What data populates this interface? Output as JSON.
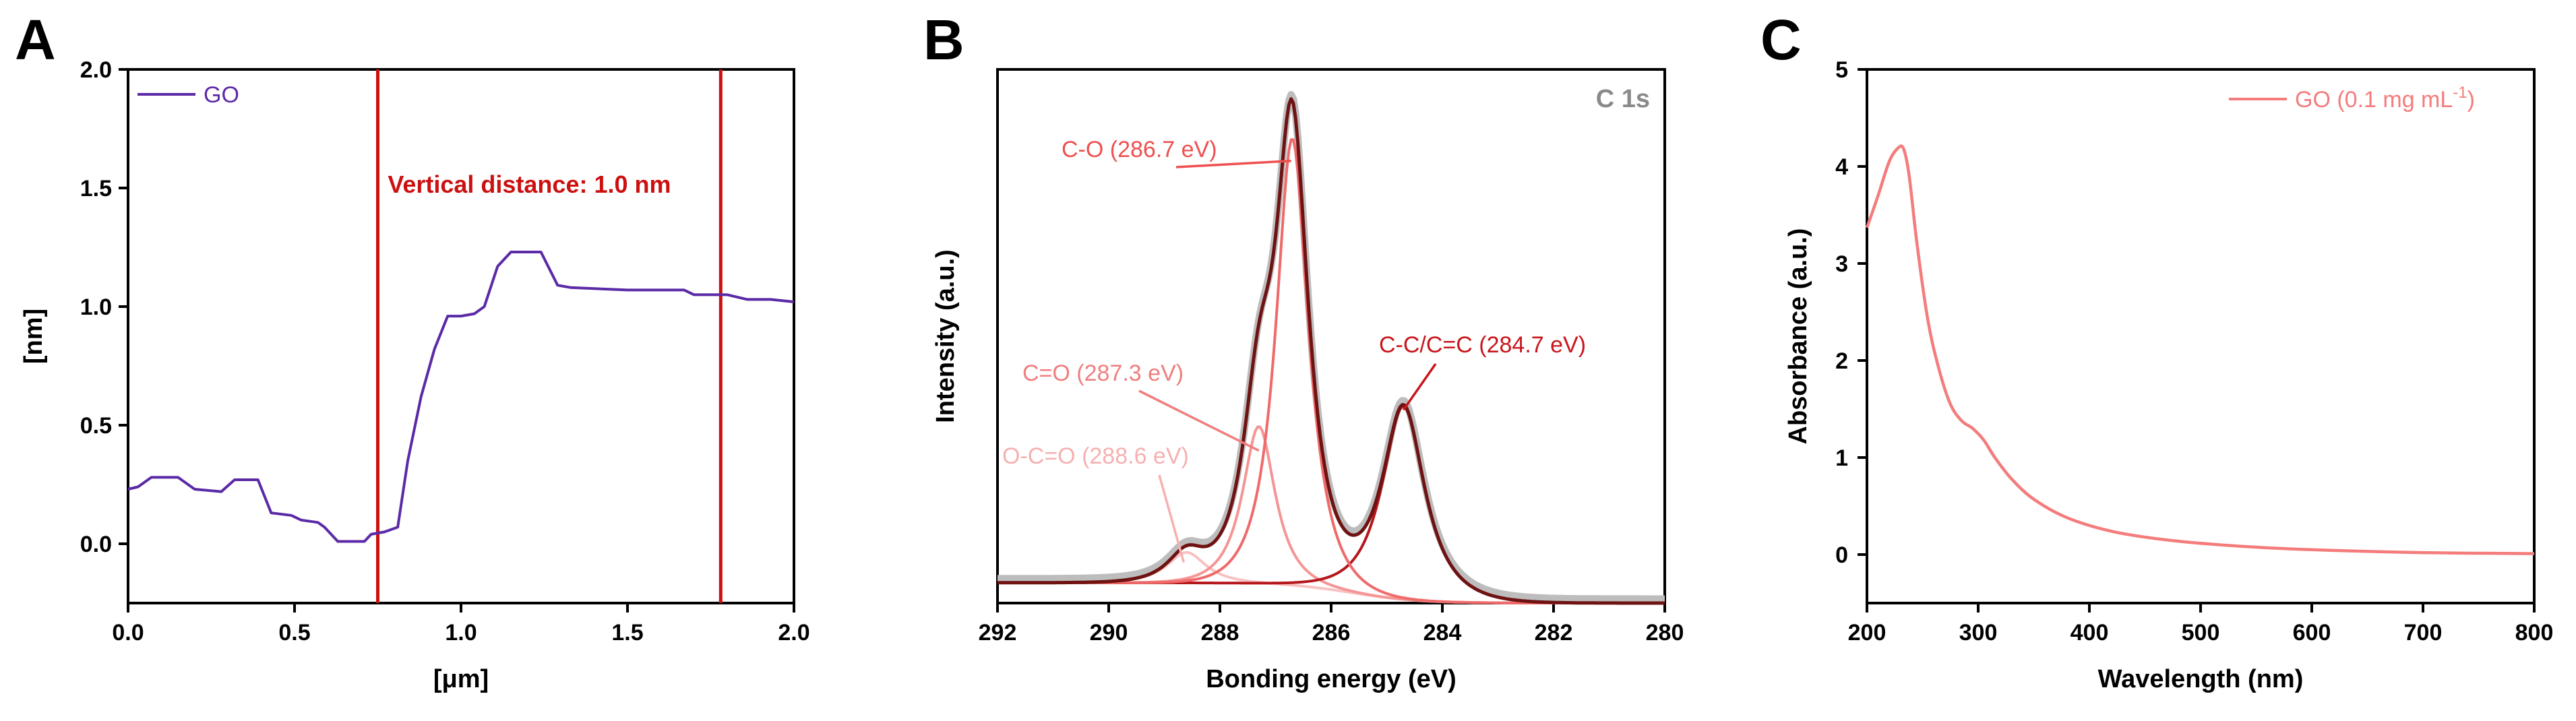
{
  "panels": [
    "A",
    "B",
    "C"
  ],
  "chart_data": [
    {
      "id": "A",
      "type": "line",
      "panel_label": "A",
      "title": "",
      "xlabel": "[μm]",
      "ylabel": "[nm]",
      "xlim": [
        0.0,
        2.0
      ],
      "ylim": [
        -0.25,
        2.0
      ],
      "xticks": [
        0.0,
        0.5,
        1.0,
        1.5,
        2.0
      ],
      "xtick_labels": [
        "0.0",
        "0.5",
        "1.0",
        "1.5",
        "2.0"
      ],
      "yticks": [
        0.0,
        0.5,
        1.0,
        1.5,
        2.0
      ],
      "ytick_labels": [
        "0.0",
        "0.5",
        "1.0",
        "1.5",
        "2.0"
      ],
      "series": [
        {
          "name": "GO",
          "color": "#5b2aa6",
          "x": [
            0.0,
            0.03,
            0.07,
            0.15,
            0.2,
            0.28,
            0.32,
            0.39,
            0.43,
            0.49,
            0.52,
            0.57,
            0.59,
            0.63,
            0.71,
            0.73,
            0.77,
            0.81,
            0.84,
            0.88,
            0.92,
            0.96,
            1.0,
            1.04,
            1.07,
            1.11,
            1.15,
            1.18,
            1.24,
            1.29,
            1.33,
            1.5,
            1.55,
            1.67,
            1.7,
            1.8,
            1.86,
            1.93,
            2.0
          ],
          "y": [
            0.23,
            0.24,
            0.28,
            0.28,
            0.23,
            0.22,
            0.27,
            0.27,
            0.13,
            0.12,
            0.1,
            0.09,
            0.07,
            0.01,
            0.01,
            0.04,
            0.05,
            0.07,
            0.35,
            0.62,
            0.82,
            0.96,
            0.96,
            0.97,
            1.0,
            1.17,
            1.23,
            1.23,
            1.23,
            1.09,
            1.08,
            1.07,
            1.07,
            1.07,
            1.05,
            1.05,
            1.03,
            1.03,
            1.02
          ]
        }
      ],
      "vlines": [
        0.75,
        1.78
      ],
      "vline_color": "#cc1010",
      "annotation": "Vertical distance: 1.0 nm",
      "legend": [
        {
          "label": "GO",
          "color": "#5b2aa6"
        }
      ],
      "legend_position": "top-left"
    },
    {
      "id": "B",
      "type": "line",
      "panel_label": "B",
      "title": "C 1s",
      "xlabel": "Bonding energy (eV)",
      "ylabel": "Intensity (a.u.)",
      "xlim": [
        292,
        280
      ],
      "ylim": [
        0,
        1.05
      ],
      "xticks": [
        292,
        290,
        288,
        286,
        284,
        282,
        280
      ],
      "xtick_labels": [
        "292",
        "290",
        "288",
        "286",
        "284",
        "282",
        "280"
      ],
      "baseline": 0.04,
      "components": [
        {
          "name": "C-C/C=C (284.7 eV)",
          "center": 284.7,
          "height": 0.38,
          "width": 0.55,
          "color": "#b5171b"
        },
        {
          "name": "C-O (286.7 eV)",
          "center": 286.7,
          "height": 0.88,
          "width": 0.42,
          "color": "#ef6a6a"
        },
        {
          "name": "C=O (287.3 eV)",
          "center": 287.3,
          "height": 0.31,
          "width": 0.42,
          "color": "#f59595"
        },
        {
          "name": "O-C=O (288.6 eV)",
          "center": 288.6,
          "height": 0.06,
          "width": 0.5,
          "color": "#f8c2c2"
        }
      ],
      "envelope_color": "#6e1212",
      "raw_color": "#bdbdbd",
      "labels": [
        {
          "text": "C-O (286.7 eV)",
          "color": "#ef4f4f"
        },
        {
          "text": "C-C/C=C (284.7 eV)",
          "color": "#c8151b"
        },
        {
          "text": "C=O (287.3 eV)",
          "color": "#f07e7e"
        },
        {
          "text": "O-C=O (288.6 eV)",
          "color": "#f6b0b0"
        }
      ]
    },
    {
      "id": "C",
      "type": "line",
      "panel_label": "C",
      "title": "",
      "xlabel": "Wavelength (nm)",
      "ylabel": "Absorbance (a.u.)",
      "xlim": [
        200,
        800
      ],
      "ylim": [
        -0.5,
        5.0
      ],
      "xticks": [
        200,
        300,
        400,
        500,
        600,
        700,
        800
      ],
      "xtick_labels": [
        "200",
        "300",
        "400",
        "500",
        "600",
        "700",
        "800"
      ],
      "yticks": [
        0,
        1,
        2,
        3,
        4,
        5
      ],
      "ytick_labels": [
        "0",
        "1",
        "2",
        "3",
        "4",
        "5"
      ],
      "series": [
        {
          "name": "GO (0.1 mg mL-1)",
          "color": "#f47c7c",
          "x": [
            200,
            210,
            220,
            228,
            233,
            238,
            245,
            255,
            265,
            275,
            285,
            295,
            305,
            315,
            330,
            350,
            380,
            420,
            470,
            530,
            600,
            700,
            800
          ],
          "y": [
            3.37,
            3.7,
            4.05,
            4.19,
            4.18,
            3.9,
            3.2,
            2.4,
            1.9,
            1.55,
            1.38,
            1.3,
            1.18,
            1.0,
            0.78,
            0.57,
            0.38,
            0.24,
            0.15,
            0.09,
            0.05,
            0.02,
            0.01
          ]
        }
      ],
      "legend_label_main": "GO (0.1 mg mL",
      "legend_label_sup": "-1",
      "legend_label_end": ")",
      "legend_position": "top-right"
    }
  ]
}
